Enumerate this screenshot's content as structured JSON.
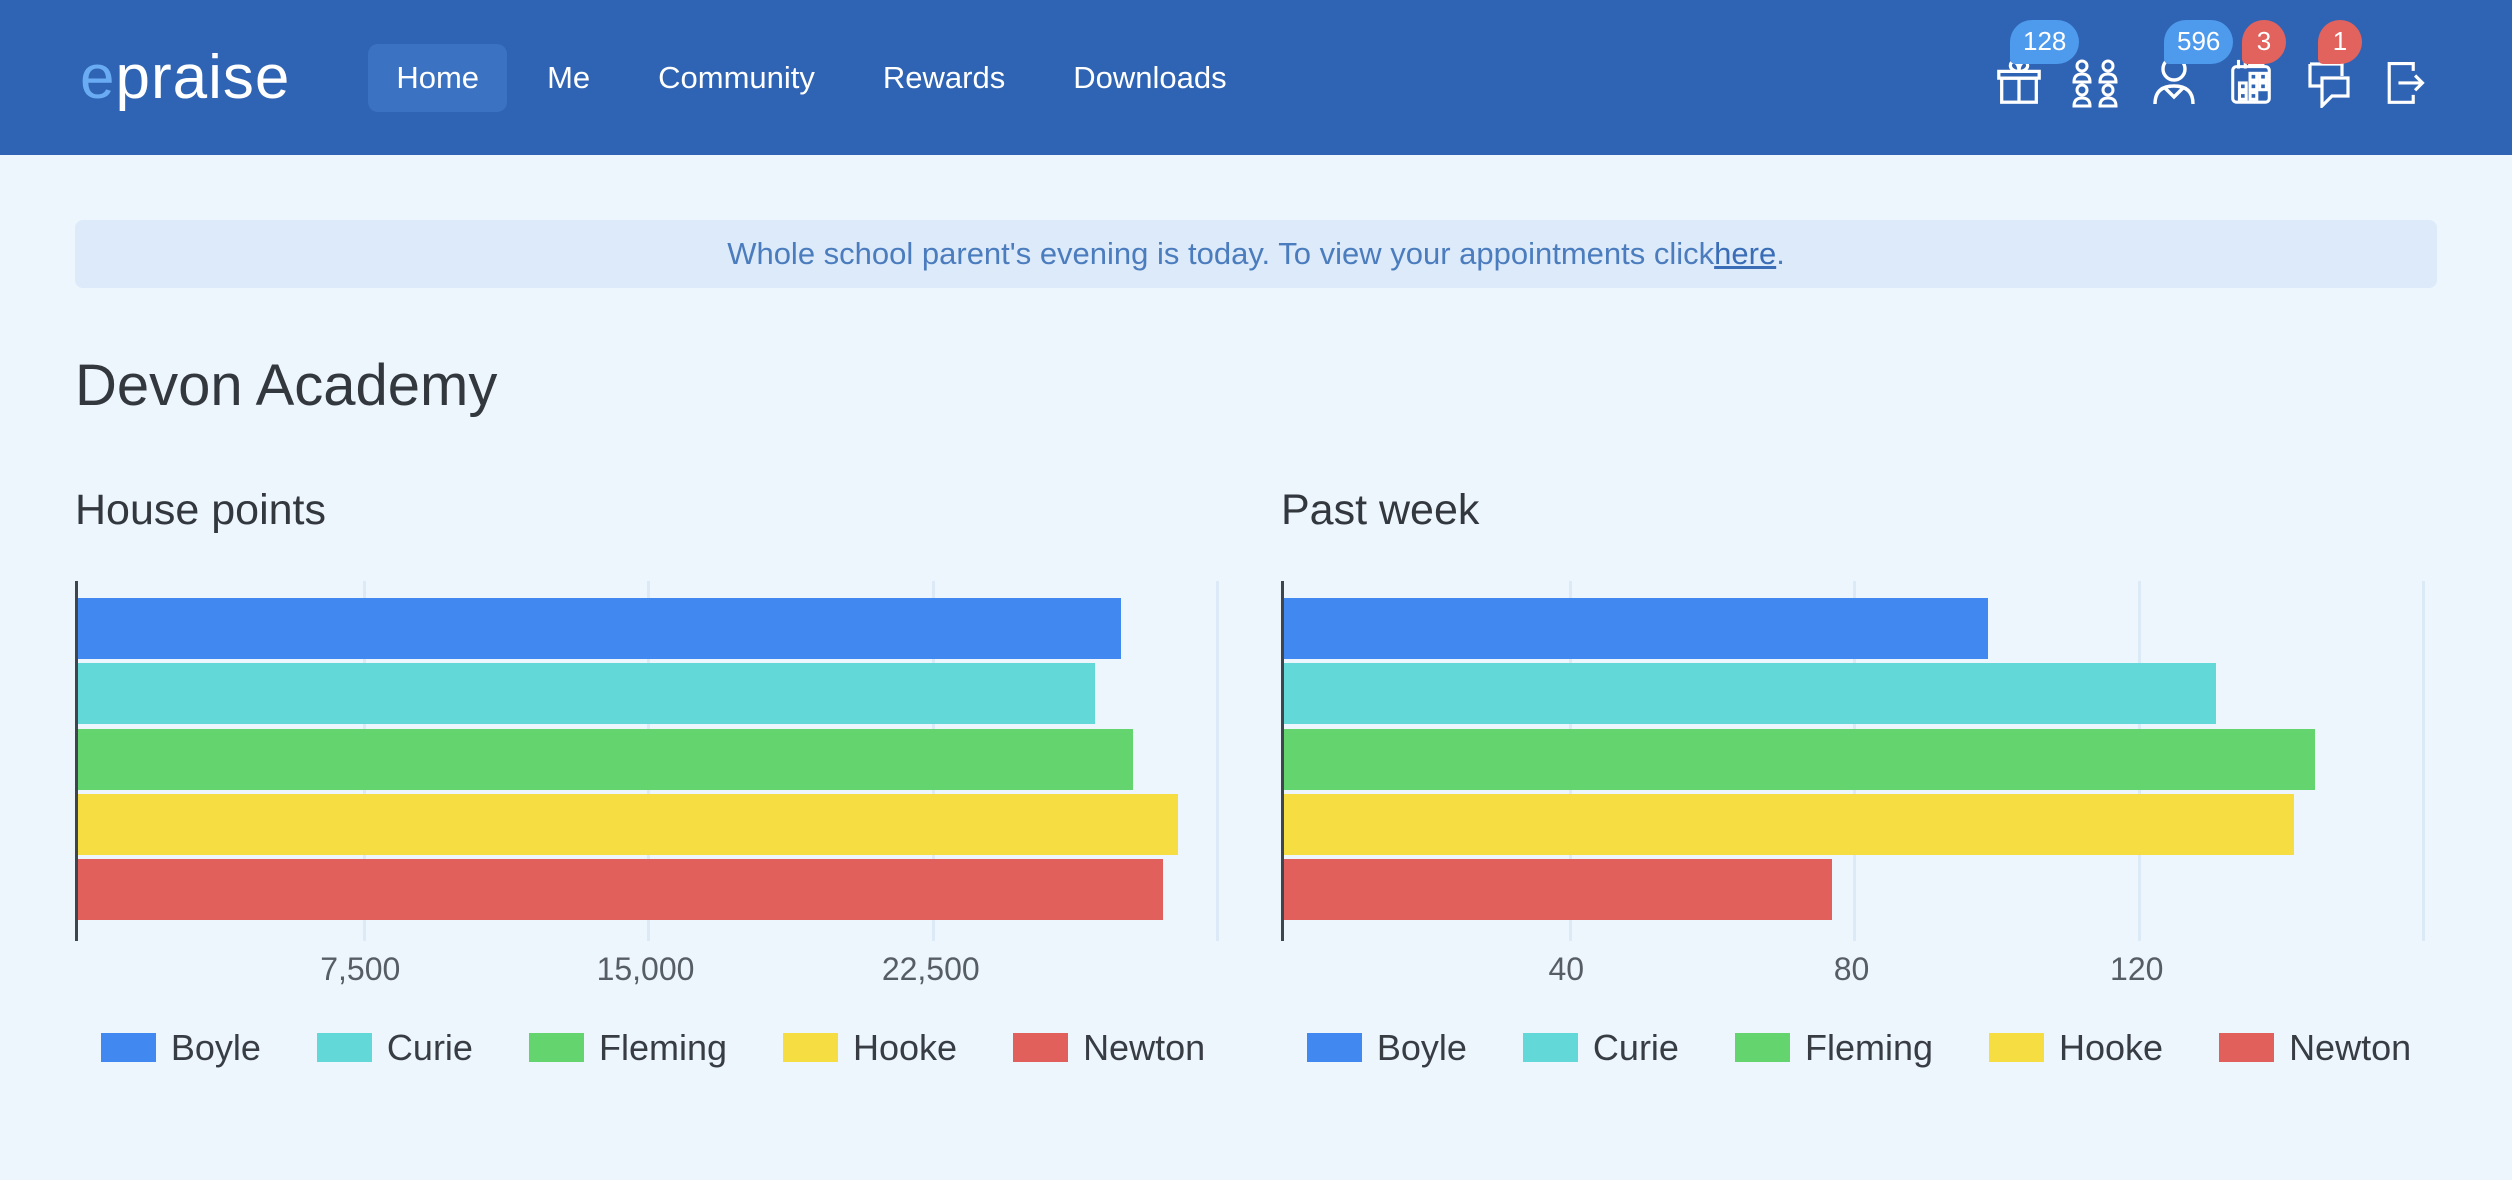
{
  "navbar": {
    "logo_prefix": "e",
    "logo_rest": "praise",
    "items": [
      {
        "label": "Home",
        "active": true
      },
      {
        "label": "Me",
        "active": false
      },
      {
        "label": "Community",
        "active": false
      },
      {
        "label": "Rewards",
        "active": false
      },
      {
        "label": "Downloads",
        "active": false
      }
    ],
    "icons": [
      {
        "name": "gift-icon",
        "badge": "128",
        "badge_color": "#4e9aec"
      },
      {
        "name": "users-icon",
        "badge": "",
        "badge_color": ""
      },
      {
        "name": "person-icon",
        "badge": "596",
        "badge_color": "#4e9aec"
      },
      {
        "name": "calendar-icon",
        "badge": "3",
        "badge_color": "#e2635e"
      },
      {
        "name": "chat-icon",
        "badge": "1",
        "badge_color": "#e2635e"
      },
      {
        "name": "logout-icon",
        "badge": "",
        "badge_color": ""
      }
    ]
  },
  "banner": {
    "text": "Whole school parent's evening is today. To view your appointments click ",
    "link_label": "here",
    "suffix": "."
  },
  "page_title": "Devon Academy",
  "colors": {
    "navbar_bg": "#2f63b3",
    "nav_active_bg": "#3b72c1",
    "logo_accent": "#6aacf3",
    "badge_blue": "#4e9aec",
    "badge_red": "#e2635e",
    "banner_bg": "#dceafa",
    "banner_text": "#4b7cbd",
    "page_bg": "#edf5fd",
    "axis": "#3f454c",
    "gridline": "#dce9f6",
    "tick_text": "#575d65",
    "heading_text": "#33383e"
  },
  "chart_data": [
    {
      "type": "bar",
      "orientation": "horizontal",
      "title": "House points",
      "categories": [
        "Boyle",
        "Curie",
        "Fleming",
        "Hooke",
        "Newton"
      ],
      "values": [
        27500,
        26800,
        27800,
        29000,
        28600
      ],
      "colors": [
        "#4189f0",
        "#63d8d8",
        "#64d46e",
        "#f5dd42",
        "#e2605c"
      ],
      "xticks": [
        7500,
        15000,
        22500
      ],
      "xlim": [
        0,
        30000
      ],
      "xlabel": "",
      "ylabel": "",
      "grid": true,
      "legend_position": "bottom"
    },
    {
      "type": "bar",
      "orientation": "horizontal",
      "title": "Past week",
      "categories": [
        "Boyle",
        "Curie",
        "Fleming",
        "Hooke",
        "Newton"
      ],
      "values": [
        99,
        131,
        145,
        142,
        77
      ],
      "colors": [
        "#4189f0",
        "#63d8d8",
        "#64d46e",
        "#f5dd42",
        "#e2605c"
      ],
      "xticks": [
        40,
        80,
        120
      ],
      "xlim": [
        0,
        160
      ],
      "xlabel": "",
      "ylabel": "",
      "grid": true,
      "legend_position": "bottom"
    }
  ]
}
